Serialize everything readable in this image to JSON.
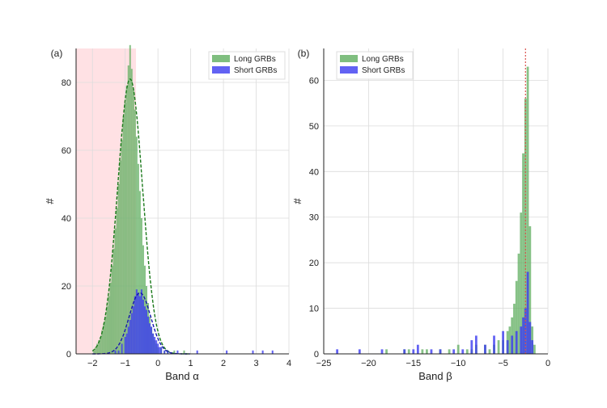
{
  "chart_data": [
    {
      "type": "histogram",
      "panel_label": "(a)",
      "xlabel": "Band α",
      "ylabel": "#",
      "xlim": [
        -2.5,
        4
      ],
      "ylim": [
        0,
        90
      ],
      "xticks": [
        "−2",
        "−1",
        "0",
        "1",
        "2",
        "3",
        "4"
      ],
      "yticks": [
        "0",
        "20",
        "40",
        "60",
        "80"
      ],
      "grid": true,
      "legend_position": "top-right",
      "shaded_region": {
        "x0": -2.5,
        "x1": -0.67,
        "color": "#ffe1e4"
      },
      "series": [
        {
          "name": "Long GRBs",
          "color": "#5fae5f",
          "bins": [
            [
              -1.95,
              1
            ],
            [
              -1.9,
              2
            ],
            [
              -1.85,
              3
            ],
            [
              -1.8,
              4
            ],
            [
              -1.75,
              5
            ],
            [
              -1.7,
              7
            ],
            [
              -1.65,
              9
            ],
            [
              -1.6,
              11
            ],
            [
              -1.55,
              14
            ],
            [
              -1.5,
              17
            ],
            [
              -1.45,
              21
            ],
            [
              -1.4,
              26
            ],
            [
              -1.35,
              31
            ],
            [
              -1.3,
              37
            ],
            [
              -1.25,
              43
            ],
            [
              -1.2,
              50
            ],
            [
              -1.15,
              57
            ],
            [
              -1.1,
              63
            ],
            [
              -1.05,
              70
            ],
            [
              -1.0,
              74
            ],
            [
              -0.95,
              79
            ],
            [
              -0.9,
              85
            ],
            [
              -0.85,
              91
            ],
            [
              -0.8,
              84
            ],
            [
              -0.75,
              78
            ],
            [
              -0.7,
              72
            ],
            [
              -0.65,
              64
            ],
            [
              -0.6,
              56
            ],
            [
              -0.55,
              48
            ],
            [
              -0.5,
              40
            ],
            [
              -0.45,
              32
            ],
            [
              -0.4,
              26
            ],
            [
              -0.35,
              20
            ],
            [
              -0.3,
              15
            ],
            [
              -0.25,
              11
            ],
            [
              -0.2,
              8
            ],
            [
              -0.15,
              6
            ],
            [
              -0.1,
              4
            ],
            [
              -0.05,
              3
            ],
            [
              0.0,
              2
            ],
            [
              0.1,
              2
            ],
            [
              0.2,
              1
            ],
            [
              0.3,
              1
            ],
            [
              0.5,
              1
            ],
            [
              0.8,
              1
            ]
          ],
          "fit_peak": 81,
          "fit_center": -0.85
        },
        {
          "name": "Short GRBs",
          "color": "#3b3bf0",
          "bins": [
            [
              -1.3,
              1
            ],
            [
              -1.2,
              1
            ],
            [
              -1.1,
              3
            ],
            [
              -1.0,
              5
            ],
            [
              -0.95,
              6
            ],
            [
              -0.9,
              8
            ],
            [
              -0.85,
              10
            ],
            [
              -0.8,
              12
            ],
            [
              -0.75,
              14
            ],
            [
              -0.7,
              17
            ],
            [
              -0.65,
              19
            ],
            [
              -0.6,
              18
            ],
            [
              -0.55,
              17
            ],
            [
              -0.5,
              19
            ],
            [
              -0.45,
              16
            ],
            [
              -0.4,
              14
            ],
            [
              -0.35,
              13
            ],
            [
              -0.3,
              11
            ],
            [
              -0.25,
              9
            ],
            [
              -0.2,
              8
            ],
            [
              -0.15,
              6
            ],
            [
              -0.1,
              5
            ],
            [
              -0.05,
              4
            ],
            [
              0.0,
              3
            ],
            [
              0.05,
              2
            ],
            [
              0.1,
              2
            ],
            [
              0.2,
              1
            ],
            [
              0.3,
              1
            ],
            [
              0.6,
              1
            ],
            [
              1.2,
              1
            ],
            [
              2.1,
              1
            ],
            [
              2.9,
              1
            ],
            [
              3.2,
              1
            ],
            [
              3.5,
              1
            ]
          ],
          "fit_peak": 18,
          "fit_center": -0.55
        }
      ]
    },
    {
      "type": "histogram",
      "panel_label": "(b)",
      "xlabel": "Band β",
      "ylabel": "#",
      "xlim": [
        -25,
        0
      ],
      "ylim": [
        0,
        67
      ],
      "xticks": [
        "−25",
        "−20",
        "−15",
        "−10",
        "−5",
        "0"
      ],
      "yticks": [
        "0",
        "10",
        "20",
        "30",
        "40",
        "50",
        "60"
      ],
      "grid": true,
      "legend_position": "top-left",
      "reference_line": {
        "x": -2.5,
        "color": "#d9534f"
      },
      "series": [
        {
          "name": "Long GRBs",
          "color": "#5fae5f",
          "bins": [
            [
              -18.0,
              1
            ],
            [
              -16.0,
              1
            ],
            [
              -15.5,
              1
            ],
            [
              -14.0,
              1
            ],
            [
              -13.5,
              1
            ],
            [
              -12.0,
              1
            ],
            [
              -11.0,
              1
            ],
            [
              -10.0,
              2
            ],
            [
              -9.0,
              1
            ],
            [
              -8.5,
              1
            ],
            [
              -8.0,
              2
            ],
            [
              -7.0,
              2
            ],
            [
              -6.5,
              1
            ],
            [
              -6.0,
              2
            ],
            [
              -5.5,
              3
            ],
            [
              -5.0,
              3
            ],
            [
              -4.5,
              5
            ],
            [
              -4.25,
              6
            ],
            [
              -4.0,
              8
            ],
            [
              -3.75,
              11
            ],
            [
              -3.5,
              16
            ],
            [
              -3.25,
              22
            ],
            [
              -3.0,
              31
            ],
            [
              -2.75,
              44
            ],
            [
              -2.5,
              56
            ],
            [
              -2.25,
              63
            ],
            [
              -2.0,
              28
            ],
            [
              -1.75,
              6
            ],
            [
              -1.5,
              2
            ]
          ]
        },
        {
          "name": "Short GRBs",
          "color": "#3b3bf0",
          "bins": [
            [
              -23.5,
              1
            ],
            [
              -21.0,
              1
            ],
            [
              -18.5,
              1
            ],
            [
              -16.0,
              1
            ],
            [
              -15.0,
              1
            ],
            [
              -14.5,
              2
            ],
            [
              -13.0,
              1
            ],
            [
              -12.0,
              1
            ],
            [
              -10.5,
              1
            ],
            [
              -9.5,
              1
            ],
            [
              -8.5,
              3
            ],
            [
              -8.0,
              4
            ],
            [
              -7.0,
              2
            ],
            [
              -6.0,
              4
            ],
            [
              -5.0,
              5
            ],
            [
              -4.5,
              3
            ],
            [
              -4.0,
              4
            ],
            [
              -3.5,
              5
            ],
            [
              -3.0,
              6
            ],
            [
              -2.75,
              8
            ],
            [
              -2.5,
              10
            ],
            [
              -2.25,
              18
            ],
            [
              -2.0,
              7
            ],
            [
              -1.75,
              3
            ]
          ]
        }
      ]
    }
  ]
}
